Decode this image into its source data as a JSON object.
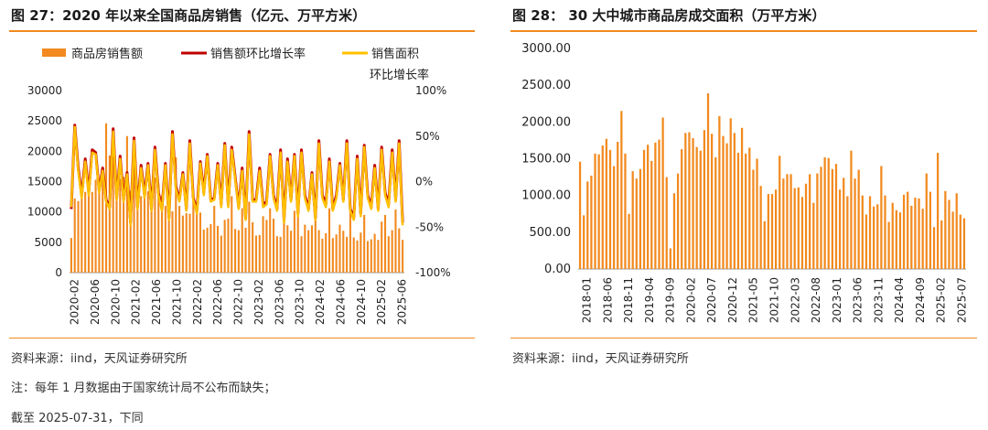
{
  "left": {
    "title": "图 27：2020 年以来全国商品房销售（亿元、万平方米）",
    "legend": [
      {
        "label": "商品房销售额",
        "color": "#f28a1f",
        "kind": "bar"
      },
      {
        "label": "销售额环比增长率",
        "color": "#c00000",
        "kind": "line"
      },
      {
        "label": "销售面积",
        "color": "#ffc000",
        "kind": "line"
      }
    ],
    "right_axis_title": "环比增长率",
    "source": "资料来源：iind，天风证券研究所",
    "note": "注：每年 1 月数据由于国家统计局不公布而缺失；",
    "cutoff": "截至 2025-07-31，下同"
  },
  "right": {
    "title": "图 28：  30 大中城市商品房成交面积（万平方米）",
    "source": "资料来源：iind，天风证券研究所"
  },
  "chart_data": [
    {
      "type": "bar",
      "title": "图 27：2020 年以来全国商品房销售（亿元、万平方米）",
      "x_ticks": [
        "2020-02",
        "2020-06",
        "2020-10",
        "2021-02",
        "2021-06",
        "2021-10",
        "2022-02",
        "2022-06",
        "2022-10",
        "2023-02",
        "2023-06",
        "2023-10",
        "2024-02",
        "2024-06",
        "2024-10",
        "2025-02",
        "2025-06"
      ],
      "ylim_left": [
        0,
        30000
      ],
      "yticks_left": [
        "0",
        "5000",
        "10000",
        "15000",
        "20000",
        "25000",
        "30000"
      ],
      "ylim_right": [
        -100,
        100
      ],
      "yticks_right": [
        "-100%",
        "-50%",
        "0%",
        "50%",
        "100%"
      ],
      "legend_position": "top",
      "series": [
        {
          "name": "商品房销售额",
          "axis": "left",
          "kind": "bar",
          "color": "#f28a1f",
          "values": [
            5700,
            12200,
            11800,
            14700,
            13300,
            13200,
            13300,
            15300,
            14000,
            15500,
            24600,
            19300,
            19500,
            14400,
            15400,
            15800,
            22500,
            13500,
            17000,
            13000,
            12600,
            13500,
            13400,
            12100,
            15700,
            14700,
            12700,
            11000,
            13000,
            10100,
            19000,
            11000,
            9400,
            9800,
            9700,
            12800,
            11600,
            9900,
            7100,
            7400,
            8000,
            11000,
            7700,
            6100,
            8700,
            8900,
            12600,
            7200,
            7000,
            10600,
            7400,
            11700,
            8300,
            6100,
            6200,
            9300,
            8700,
            10600,
            8900,
            6000,
            5900,
            11900,
            7800,
            6900,
            10200,
            10700,
            6000,
            7900,
            7000,
            7800,
            10100,
            7000,
            5600,
            6500,
            10600,
            5700,
            6300,
            7900,
            6900,
            5900,
            11900,
            5800,
            5300,
            6600,
            9500,
            5200,
            5500,
            6400,
            5400,
            8400,
            9500,
            6000,
            7000,
            10400,
            7300,
            5400
          ],
          "note": "approximate monthly values, February–December each year"
        },
        {
          "name": "销售额环比增长率",
          "axis": "right",
          "kind": "line",
          "color": "#c00000",
          "values": [
            -30,
            62,
            15,
            -15,
            25,
            -12,
            35,
            32,
            -10,
            15,
            -20,
            -28,
            58,
            -18,
            28,
            -20,
            10,
            -45,
            48,
            -28,
            18,
            -15,
            20,
            -30,
            38,
            -12,
            -30,
            20,
            -40,
            55,
            -5,
            -20,
            10,
            -30,
            45,
            -18,
            -32,
            22,
            -12,
            30,
            -20,
            -18,
            20,
            -25,
            42,
            -25,
            38,
            5,
            -28,
            15,
            -40,
            55,
            -20,
            -20,
            15,
            -25,
            -22,
            30,
            -15,
            -30,
            35,
            -42,
            25,
            -20,
            30,
            -35,
            35,
            -15,
            -30,
            10,
            -40,
            45,
            -15,
            -25,
            25,
            -30,
            -15,
            20,
            -20,
            45,
            -30,
            -40,
            28,
            -35,
            40,
            -15,
            -28,
            18,
            -30,
            38,
            -12,
            -25,
            35,
            -20,
            45,
            -45
          ],
          "note": "approximate, percent"
        },
        {
          "name": "销售面积",
          "axis": "right",
          "kind": "line",
          "color": "#ffc000",
          "values": [
            -28,
            60,
            12,
            -18,
            22,
            -15,
            32,
            30,
            -12,
            12,
            -22,
            -30,
            55,
            -20,
            25,
            -22,
            8,
            -48,
            45,
            -30,
            15,
            -18,
            18,
            -32,
            35,
            -15,
            -32,
            18,
            -42,
            52,
            -8,
            -22,
            8,
            -32,
            42,
            -20,
            -35,
            20,
            -15,
            28,
            -22,
            -20,
            18,
            -28,
            40,
            -28,
            35,
            3,
            -30,
            12,
            -42,
            52,
            -22,
            -22,
            12,
            -28,
            -25,
            28,
            -18,
            -32,
            32,
            -45,
            22,
            -22,
            28,
            -38,
            32,
            -18,
            -32,
            8,
            -42,
            42,
            -18,
            -28,
            22,
            -32,
            -18,
            18,
            -22,
            42,
            -32,
            -42,
            25,
            -38,
            38,
            -18,
            -30,
            15,
            -32,
            35,
            -15,
            -28,
            32,
            -22,
            42,
            -48
          ],
          "note": "approximate, plotted on the growth-rate scale as drawn"
        }
      ]
    },
    {
      "type": "bar",
      "title": "图 28：  30 大中城市商品房成交面积（万平方米）",
      "x_ticks": [
        "2018-01",
        "2018-06",
        "2018-11",
        "2019-04",
        "2019-09",
        "2020-02",
        "2020-07",
        "2020-12",
        "2021-05",
        "2021-10",
        "2022-03",
        "2022-08",
        "2023-01",
        "2023-06",
        "2023-11",
        "2024-04",
        "2024-09",
        "2025-02",
        "2025-07"
      ],
      "ylim": [
        0,
        3000
      ],
      "yticks": [
        "0.00",
        "500.00",
        "1000.00",
        "1500.00",
        "2000.00",
        "2500.00",
        "3000.00"
      ],
      "series": [
        {
          "name": "",
          "color": "#f28a1f",
          "values": [
            1460,
            730,
            1190,
            1270,
            1570,
            1560,
            1680,
            1770,
            1620,
            1400,
            1730,
            2150,
            1570,
            750,
            1330,
            1230,
            1360,
            1620,
            1690,
            1470,
            1720,
            1760,
            2060,
            1250,
            280,
            1030,
            1300,
            1630,
            1850,
            1860,
            1780,
            1660,
            1610,
            1890,
            2390,
            1840,
            1520,
            2080,
            1810,
            1710,
            2050,
            1850,
            1580,
            1920,
            1570,
            1650,
            1350,
            1500,
            1130,
            650,
            1020,
            1020,
            1080,
            1540,
            1230,
            1290,
            1290,
            1100,
            1110,
            980,
            1160,
            1290,
            900,
            1300,
            1390,
            1520,
            1510,
            1360,
            1430,
            1080,
            1240,
            990,
            1610,
            1230,
            1350,
            1000,
            740,
            990,
            850,
            880,
            1400,
            1000,
            640,
            900,
            800,
            770,
            1010,
            1050,
            860,
            970,
            960,
            820,
            1300,
            1050,
            570,
            1580,
            660,
            1060,
            940,
            780,
            1030,
            740,
            690
          ],
          "note": "approximate monthly values"
        }
      ]
    }
  ]
}
